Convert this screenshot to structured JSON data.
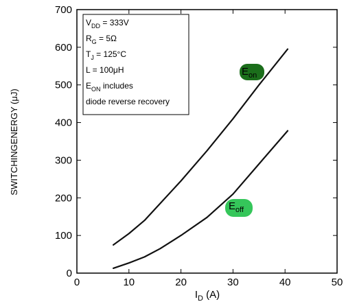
{
  "chart_data": {
    "type": "line",
    "ylabel": "SWITCHINGENERGY (μJ)",
    "xlabel": "I",
    "xlabel_sub": "D",
    "xlabel_unit": " (A)",
    "xlim": [
      0,
      50
    ],
    "ylim": [
      0,
      700
    ],
    "x_ticks": [
      0,
      10,
      20,
      30,
      40,
      50
    ],
    "y_ticks": [
      0,
      100,
      200,
      300,
      400,
      500,
      600,
      700
    ],
    "grid": false,
    "conditions": [
      {
        "main": "V",
        "sub": "DD",
        "rest": " = 333V"
      },
      {
        "main": "R",
        "sub": "G",
        "rest": " = 5Ω"
      },
      {
        "main": "T",
        "sub": "J",
        "rest": " = 125°C"
      },
      {
        "main": "L = 100μH",
        "sub": "",
        "rest": ""
      },
      {
        "main": "E",
        "sub": "ON",
        "rest": "  includes"
      },
      {
        "main": "diode reverse recovery",
        "sub": "",
        "rest": ""
      }
    ],
    "series": [
      {
        "main": "E",
        "sub": "on",
        "color": "#1b6e1b",
        "x": [
          7,
          10,
          13,
          16,
          20,
          25,
          30,
          35,
          40.5
        ],
        "y": [
          75,
          105,
          140,
          185,
          245,
          325,
          410,
          500,
          595
        ]
      },
      {
        "main": "E",
        "sub": "off",
        "color": "#35c65a",
        "x": [
          7,
          10,
          13,
          16,
          20,
          25,
          30,
          35,
          40.5
        ],
        "y": [
          13,
          27,
          43,
          65,
          100,
          148,
          210,
          290,
          378
        ]
      }
    ]
  }
}
